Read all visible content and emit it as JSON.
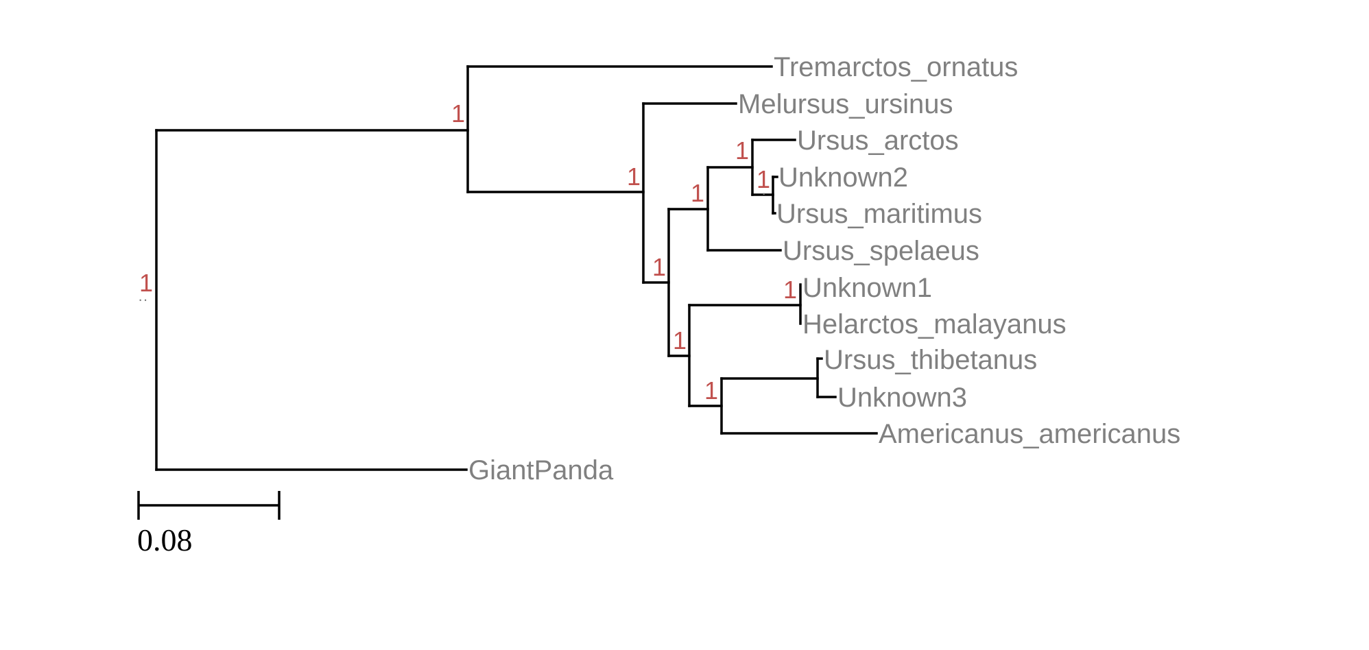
{
  "tree": {
    "leaves": [
      "Tremarctos_ornatus",
      "Melursus_ursinus",
      "Ursus_arctos",
      "Unknown2",
      "Ursus_maritimus",
      "Ursus_spelaeus",
      "Unknown1",
      "Helarctos_malayanus",
      "Ursus_thibetanus",
      "Unknown3",
      "Americanus_americanus",
      "GiantPanda"
    ],
    "node_supports": [
      "1",
      "1",
      "1",
      "1",
      "1",
      "1",
      "1",
      "1",
      "1",
      "1"
    ],
    "colors": {
      "branch": "#000000",
      "leaf_label": "#808080",
      "support": "#c0504d"
    }
  },
  "scale_bar": {
    "value": 0.08,
    "label": "0.08"
  }
}
